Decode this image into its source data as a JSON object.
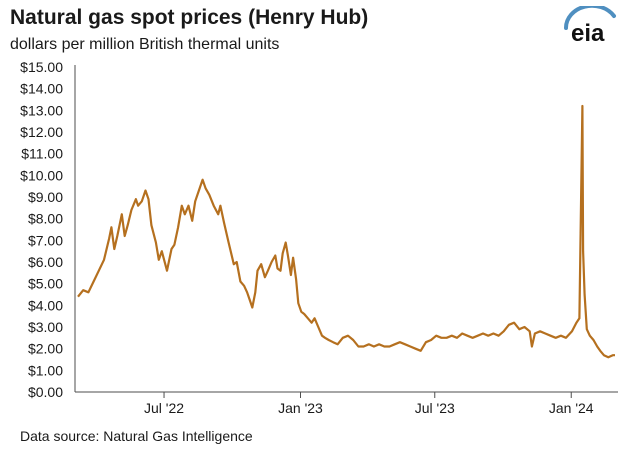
{
  "header": {
    "title": "Natural gas spot prices (Henry Hub)",
    "subtitle": "dollars per million British thermal units",
    "logo_text": "eia"
  },
  "footer": {
    "source": "Data source: Natural Gas Intelligence"
  },
  "colors": {
    "line": "#b5701f",
    "axis": "#4d4d4d",
    "logo_arc": "#4f8fc0"
  },
  "chart_data": {
    "type": "line",
    "title": "Natural gas spot prices (Henry Hub)",
    "ylabel": "dollars per million British thermal units",
    "xlabel": "",
    "ylim": [
      0,
      15
    ],
    "xlim": [
      "2022-03-07",
      "2024-02-29"
    ],
    "grid": false,
    "y_ticks": [
      "$0.00",
      "$1.00",
      "$2.00",
      "$3.00",
      "$4.00",
      "$5.00",
      "$6.00",
      "$7.00",
      "$8.00",
      "$9.00",
      "$10.00",
      "$11.00",
      "$12.00",
      "$13.00",
      "$14.00",
      "$15.00"
    ],
    "x_ticks": [
      {
        "label": "Jul '22",
        "date": "2022-07-01"
      },
      {
        "label": "Jan '23",
        "date": "2023-01-01"
      },
      {
        "label": "Jul '23",
        "date": "2023-07-01"
      },
      {
        "label": "Jan '24",
        "date": "2024-01-01"
      }
    ],
    "series": [
      {
        "values": [
          [
            "2022-03-07",
            4.4
          ],
          [
            "2022-03-14",
            4.7
          ],
          [
            "2022-03-21",
            4.6
          ],
          [
            "2022-03-28",
            5.1
          ],
          [
            "2022-04-04",
            5.6
          ],
          [
            "2022-04-11",
            6.1
          ],
          [
            "2022-04-18",
            7.1
          ],
          [
            "2022-04-21",
            7.6
          ],
          [
            "2022-04-25",
            6.6
          ],
          [
            "2022-04-29",
            7.2
          ],
          [
            "2022-05-05",
            8.2
          ],
          [
            "2022-05-09",
            7.2
          ],
          [
            "2022-05-13",
            7.7
          ],
          [
            "2022-05-18",
            8.4
          ],
          [
            "2022-05-24",
            8.9
          ],
          [
            "2022-05-27",
            8.6
          ],
          [
            "2022-06-01",
            8.8
          ],
          [
            "2022-06-06",
            9.3
          ],
          [
            "2022-06-10",
            8.9
          ],
          [
            "2022-06-14",
            7.7
          ],
          [
            "2022-06-20",
            6.9
          ],
          [
            "2022-06-24",
            6.1
          ],
          [
            "2022-06-28",
            6.5
          ],
          [
            "2022-07-05",
            5.6
          ],
          [
            "2022-07-11",
            6.6
          ],
          [
            "2022-07-15",
            6.8
          ],
          [
            "2022-07-20",
            7.6
          ],
          [
            "2022-07-25",
            8.6
          ],
          [
            "2022-07-29",
            8.2
          ],
          [
            "2022-08-03",
            8.6
          ],
          [
            "2022-08-08",
            7.9
          ],
          [
            "2022-08-12",
            8.8
          ],
          [
            "2022-08-17",
            9.3
          ],
          [
            "2022-08-22",
            9.8
          ],
          [
            "2022-08-26",
            9.4
          ],
          [
            "2022-08-31",
            9.1
          ],
          [
            "2022-09-06",
            8.6
          ],
          [
            "2022-09-12",
            8.2
          ],
          [
            "2022-09-15",
            8.6
          ],
          [
            "2022-09-20",
            7.8
          ],
          [
            "2022-09-26",
            6.9
          ],
          [
            "2022-10-03",
            5.9
          ],
          [
            "2022-10-07",
            6.0
          ],
          [
            "2022-10-12",
            5.1
          ],
          [
            "2022-10-17",
            4.9
          ],
          [
            "2022-10-21",
            4.6
          ],
          [
            "2022-10-25",
            4.2
          ],
          [
            "2022-10-28",
            3.9
          ],
          [
            "2022-11-01",
            4.6
          ],
          [
            "2022-11-04",
            5.6
          ],
          [
            "2022-11-09",
            5.9
          ],
          [
            "2022-11-14",
            5.3
          ],
          [
            "2022-11-18",
            5.6
          ],
          [
            "2022-11-23",
            6.0
          ],
          [
            "2022-11-28",
            6.3
          ],
          [
            "2022-12-01",
            5.7
          ],
          [
            "2022-12-05",
            5.6
          ],
          [
            "2022-12-08",
            6.4
          ],
          [
            "2022-12-12",
            6.9
          ],
          [
            "2022-12-15",
            6.3
          ],
          [
            "2022-12-19",
            5.4
          ],
          [
            "2022-12-22",
            6.2
          ],
          [
            "2022-12-26",
            5.2
          ],
          [
            "2022-12-29",
            4.1
          ],
          [
            "2023-01-02",
            3.7
          ],
          [
            "2023-01-06",
            3.6
          ],
          [
            "2023-01-11",
            3.4
          ],
          [
            "2023-01-16",
            3.2
          ],
          [
            "2023-01-20",
            3.4
          ],
          [
            "2023-01-25",
            3.0
          ],
          [
            "2023-01-30",
            2.6
          ],
          [
            "2023-02-03",
            2.5
          ],
          [
            "2023-02-08",
            2.4
          ],
          [
            "2023-02-14",
            2.3
          ],
          [
            "2023-02-20",
            2.2
          ],
          [
            "2023-02-27",
            2.5
          ],
          [
            "2023-03-06",
            2.6
          ],
          [
            "2023-03-13",
            2.4
          ],
          [
            "2023-03-20",
            2.1
          ],
          [
            "2023-03-27",
            2.1
          ],
          [
            "2023-04-03",
            2.2
          ],
          [
            "2023-04-10",
            2.1
          ],
          [
            "2023-04-17",
            2.2
          ],
          [
            "2023-04-24",
            2.1
          ],
          [
            "2023-05-01",
            2.1
          ],
          [
            "2023-05-08",
            2.2
          ],
          [
            "2023-05-15",
            2.3
          ],
          [
            "2023-05-22",
            2.2
          ],
          [
            "2023-05-29",
            2.1
          ],
          [
            "2023-06-05",
            2.0
          ],
          [
            "2023-06-12",
            1.9
          ],
          [
            "2023-06-19",
            2.3
          ],
          [
            "2023-06-26",
            2.4
          ],
          [
            "2023-07-03",
            2.6
          ],
          [
            "2023-07-10",
            2.5
          ],
          [
            "2023-07-17",
            2.5
          ],
          [
            "2023-07-24",
            2.6
          ],
          [
            "2023-07-31",
            2.5
          ],
          [
            "2023-08-07",
            2.7
          ],
          [
            "2023-08-14",
            2.6
          ],
          [
            "2023-08-21",
            2.5
          ],
          [
            "2023-08-28",
            2.6
          ],
          [
            "2023-09-04",
            2.7
          ],
          [
            "2023-09-11",
            2.6
          ],
          [
            "2023-09-18",
            2.7
          ],
          [
            "2023-09-25",
            2.6
          ],
          [
            "2023-10-02",
            2.8
          ],
          [
            "2023-10-09",
            3.1
          ],
          [
            "2023-10-16",
            3.2
          ],
          [
            "2023-10-23",
            2.9
          ],
          [
            "2023-10-30",
            3.0
          ],
          [
            "2023-11-06",
            2.8
          ],
          [
            "2023-11-09",
            2.1
          ],
          [
            "2023-11-13",
            2.7
          ],
          [
            "2023-11-20",
            2.8
          ],
          [
            "2023-11-27",
            2.7
          ],
          [
            "2023-12-04",
            2.6
          ],
          [
            "2023-12-11",
            2.5
          ],
          [
            "2023-12-18",
            2.6
          ],
          [
            "2023-12-25",
            2.5
          ],
          [
            "2024-01-02",
            2.8
          ],
          [
            "2024-01-08",
            3.2
          ],
          [
            "2024-01-12",
            3.4
          ],
          [
            "2024-01-16",
            13.2
          ],
          [
            "2024-01-17",
            6.5
          ],
          [
            "2024-01-19",
            4.5
          ],
          [
            "2024-01-22",
            2.9
          ],
          [
            "2024-01-26",
            2.6
          ],
          [
            "2024-01-31",
            2.4
          ],
          [
            "2024-02-05",
            2.1
          ],
          [
            "2024-02-09",
            1.9
          ],
          [
            "2024-02-14",
            1.7
          ],
          [
            "2024-02-20",
            1.6
          ],
          [
            "2024-02-26",
            1.7
          ],
          [
            "2024-02-29",
            1.7
          ]
        ]
      }
    ]
  }
}
